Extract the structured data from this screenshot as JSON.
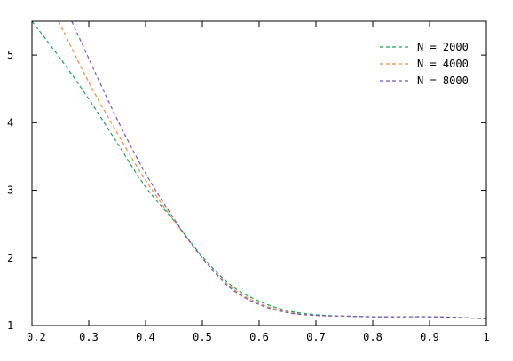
{
  "chart_data": {
    "type": "line",
    "title": "",
    "xlabel": "",
    "ylabel": "",
    "xlim": [
      0.2,
      1.0
    ],
    "ylim": [
      1.0,
      5.5
    ],
    "grid": false,
    "legend_position": "top-right",
    "x_ticks": [
      0.2,
      0.3,
      0.4,
      0.5,
      0.6,
      0.7,
      0.8,
      0.9,
      1.0
    ],
    "x_tick_labels": [
      "0.2",
      "0.3",
      "0.4",
      "0.5",
      "0.6",
      "0.7",
      "0.8",
      "0.9",
      "1"
    ],
    "y_ticks": [
      1,
      2,
      3,
      4,
      5
    ],
    "y_tick_labels": [
      "1",
      "2",
      "3",
      "4",
      "5"
    ],
    "series": [
      {
        "name": "N = 2000",
        "color": "#1aa55a",
        "style": "dashed",
        "x": [
          0.2,
          0.25,
          0.3,
          0.35,
          0.4,
          0.45,
          0.5,
          0.55,
          0.6,
          0.65,
          0.7,
          0.75,
          0.8,
          0.85,
          0.9,
          0.95,
          1.0
        ],
        "y": [
          5.5,
          4.95,
          4.35,
          3.7,
          3.05,
          2.55,
          2.02,
          1.6,
          1.36,
          1.22,
          1.16,
          1.14,
          1.13,
          1.13,
          1.13,
          1.12,
          1.1
        ]
      },
      {
        "name": "N = 4000",
        "color": "#f08c3a",
        "style": "dashed",
        "x": [
          0.247,
          0.3,
          0.35,
          0.4,
          0.45,
          0.5,
          0.55,
          0.6,
          0.65,
          0.7,
          0.75,
          0.8,
          0.85,
          0.9,
          0.95,
          1.0
        ],
        "y": [
          5.5,
          4.6,
          3.85,
          3.15,
          2.55,
          2.0,
          1.57,
          1.33,
          1.2,
          1.15,
          1.14,
          1.13,
          1.13,
          1.13,
          1.12,
          1.1
        ]
      },
      {
        "name": "N = 8000",
        "color": "#6a5acd",
        "style": "dashed",
        "x": [
          0.27,
          0.3,
          0.35,
          0.4,
          0.45,
          0.5,
          0.55,
          0.6,
          0.65,
          0.7,
          0.75,
          0.8,
          0.85,
          0.9,
          0.95,
          1.0
        ],
        "y": [
          5.5,
          4.95,
          4.05,
          3.25,
          2.58,
          2.0,
          1.55,
          1.31,
          1.19,
          1.15,
          1.14,
          1.13,
          1.13,
          1.13,
          1.12,
          1.1
        ]
      }
    ]
  }
}
